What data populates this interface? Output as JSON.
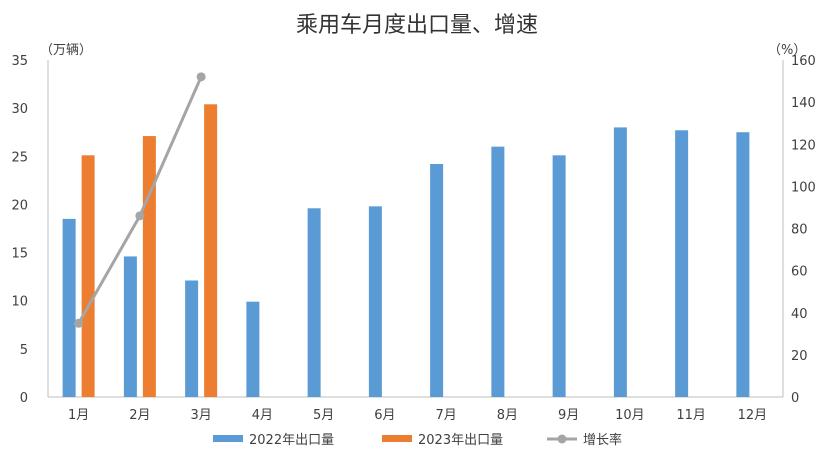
{
  "chart_data": {
    "type": "bar",
    "title": "乘用车月度出口量、增速",
    "left_unit": "（万辆）",
    "right_unit": "（%）",
    "categories": [
      "1月",
      "2月",
      "3月",
      "4月",
      "5月",
      "6月",
      "7月",
      "8月",
      "9月",
      "10月",
      "11月",
      "12月"
    ],
    "ylim": [
      0,
      35
    ],
    "y_ticks": [
      "0",
      "5",
      "10",
      "15",
      "20",
      "25",
      "30",
      "35"
    ],
    "y2lim": [
      0,
      160
    ],
    "y2_ticks": [
      "0",
      "20",
      "40",
      "60",
      "80",
      "100",
      "120",
      "140",
      "160"
    ],
    "series": [
      {
        "name": "2022年出口量",
        "type": "bar",
        "axis": "left",
        "color": "#5B9BD5",
        "values": [
          18.5,
          14.6,
          12.1,
          9.9,
          19.6,
          19.8,
          24.2,
          26.0,
          25.1,
          28.0,
          27.7,
          27.5
        ]
      },
      {
        "name": "2023年出口量",
        "type": "bar",
        "axis": "left",
        "color": "#ED7D31",
        "values": [
          25.1,
          27.1,
          30.4,
          null,
          null,
          null,
          null,
          null,
          null,
          null,
          null,
          null
        ]
      },
      {
        "name": "增长率",
        "type": "line",
        "axis": "right",
        "color": "#A5A5A5",
        "values": [
          35,
          86,
          152,
          null,
          null,
          null,
          null,
          null,
          null,
          null,
          null,
          null
        ]
      }
    ],
    "grid": false,
    "legend_position": "bottom"
  }
}
